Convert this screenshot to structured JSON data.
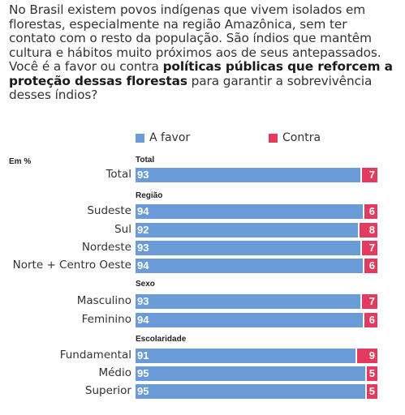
{
  "question": {
    "lines": [
      "No Brasil existem povos indígenas que vivem isolados em",
      "florestas, especialmente na região Amazônica, sem ter",
      "contato com o resto da população. São índios que mantêm",
      "cultura e hábitos muito próximos aos de seus antepassados."
    ],
    "line5_plain": "Você é a favor ou contra ",
    "line5_bold": "políticas públicas que reforcem a",
    "line6_bold": "proteção dessas florestas",
    "line6_plain": " para garantir a sobrevivência",
    "line7": "desses índios?"
  },
  "legend": {
    "favor": "A favor",
    "contra": "Contra"
  },
  "colors": {
    "favor": "#6b9bd6",
    "contra": "#e23b5f"
  },
  "chart_data": {
    "type": "bar",
    "orientation": "horizontal",
    "stacked": true,
    "unit_label": "Em %",
    "series": [
      {
        "name": "A favor",
        "color": "#6b9bd6"
      },
      {
        "name": "Contra",
        "color": "#e23b5f"
      }
    ],
    "groups": [
      {
        "title": "Total",
        "rows": [
          {
            "label": "Total",
            "favor": 93,
            "contra": 7
          }
        ]
      },
      {
        "title": "Região",
        "rows": [
          {
            "label": "Sudeste",
            "favor": 94,
            "contra": 6
          },
          {
            "label": "Sul",
            "favor": 92,
            "contra": 8
          },
          {
            "label": "Nordeste",
            "favor": 93,
            "contra": 7
          },
          {
            "label": "Norte + Centro Oeste",
            "favor": 94,
            "contra": 6
          }
        ]
      },
      {
        "title": "Sexo",
        "rows": [
          {
            "label": "Masculino",
            "favor": 93,
            "contra": 7
          },
          {
            "label": "Feminino",
            "favor": 94,
            "contra": 6
          }
        ]
      },
      {
        "title": "Escolaridade",
        "rows": [
          {
            "label": "Fundamental",
            "favor": 91,
            "contra": 9
          },
          {
            "label": "Médio",
            "favor": 95,
            "contra": 5
          },
          {
            "label": "Superior",
            "favor": 95,
            "contra": 5
          }
        ]
      }
    ]
  }
}
